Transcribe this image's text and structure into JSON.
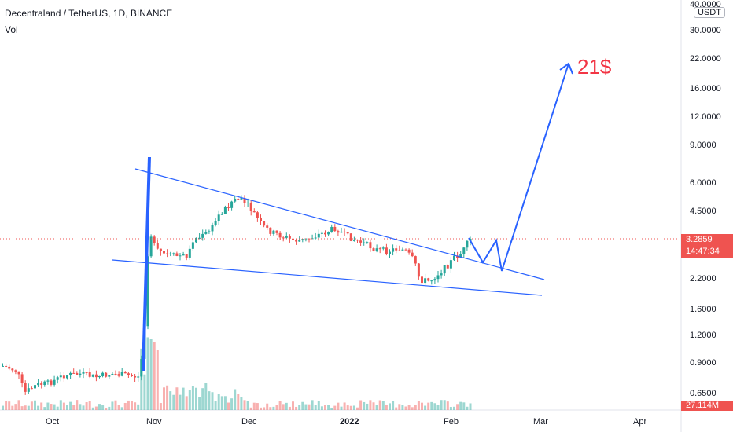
{
  "header": {
    "title": "Decentraland / TetherUS, 1D, BINANCE",
    "volume_label": "Vol"
  },
  "price_axis": {
    "currency": "USDT",
    "ticks": [
      "40.0000",
      "30.0000",
      "22.0000",
      "16.0000",
      "12.0000",
      "9.0000",
      "6.0000",
      "4.5000",
      "3.2859",
      "2.2000",
      "1.6000",
      "1.2000",
      "0.9000",
      "0.6500"
    ],
    "top_tick": "40.0000"
  },
  "current_price": {
    "value": "3.2859",
    "countdown": "14:47:34",
    "color": "#ef5350"
  },
  "volume_readout": "27.114M",
  "annotation": {
    "target_label": "21$",
    "color": "#f23645"
  },
  "time_axis": {
    "labels": [
      "Oct",
      "Nov",
      "Dec",
      "2022",
      "Feb",
      "Mar",
      "Apr"
    ]
  },
  "chart_data": {
    "type": "candlestick",
    "title": "Decentraland / TetherUS, 1D, BINANCE",
    "y_scale": "log",
    "x_tick_labels": [
      "Oct",
      "Nov",
      "Dec",
      "2022",
      "Feb",
      "Mar",
      "Apr"
    ],
    "y_tick_labels": [
      "40.0000",
      "30.0000",
      "22.0000",
      "16.0000",
      "12.0000",
      "9.0000",
      "6.0000",
      "4.5000",
      "2.2000",
      "1.6000",
      "1.2000",
      "0.9000",
      "0.6500"
    ],
    "last_price": 3.2859,
    "up_color": "#26a69a",
    "down_color": "#ef5350",
    "trendline_color": "#2962ff"
  }
}
